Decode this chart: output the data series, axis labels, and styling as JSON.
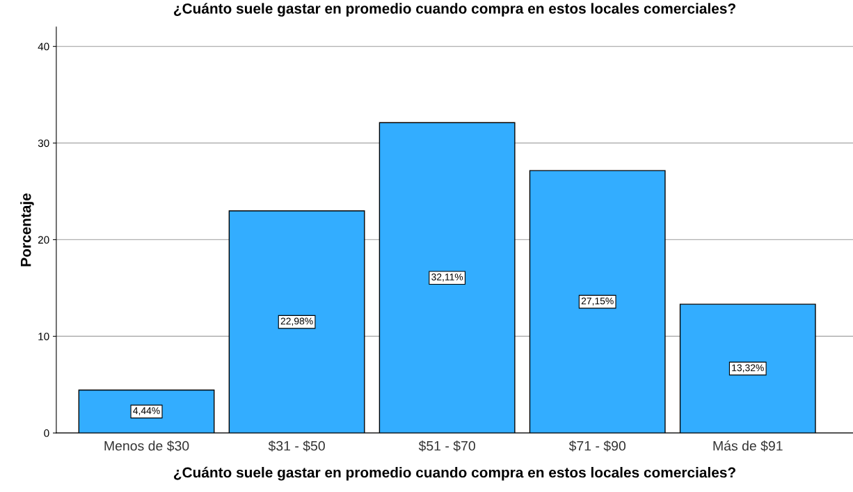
{
  "chart_data": {
    "type": "bar",
    "title": "¿Cuánto suele gastar en promedio cuando compra en estos locales comerciales?",
    "xlabel": "¿Cuánto suele gastar en promedio cuando compra en estos locales comerciales?",
    "ylabel": "Porcentaje",
    "categories": [
      "Menos de $30",
      "$31 - $50",
      "$51 - $70",
      "$71 - $90",
      "Más de $91"
    ],
    "values": [
      4.44,
      22.98,
      32.11,
      27.15,
      13.32
    ],
    "value_labels": [
      "4,44%",
      "22,98%",
      "32,11%",
      "27,15%",
      "13,32%"
    ],
    "color": "#33adff",
    "ylim": [
      0,
      42
    ],
    "yticks": [
      0,
      10,
      20,
      30,
      40
    ],
    "grid": "y",
    "legend": false
  }
}
